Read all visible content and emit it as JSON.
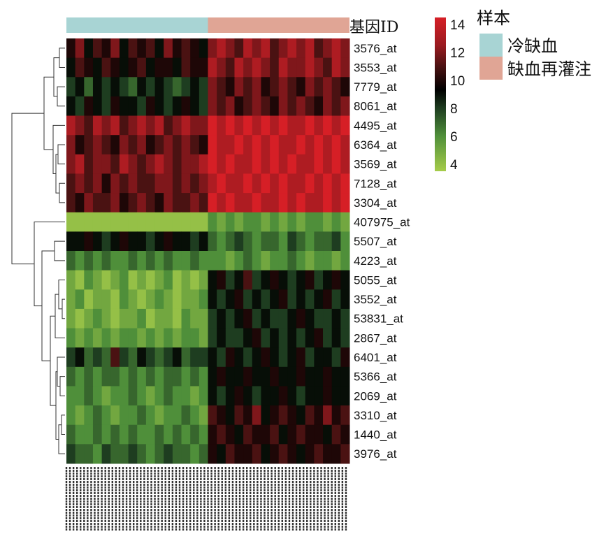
{
  "chart_data": {
    "type": "heatmap",
    "title": "",
    "row_header": "基因ID",
    "rows": [
      "3576_at",
      "3553_at",
      "7779_at",
      "8061_at",
      "4495_at",
      "6364_at",
      "3569_at",
      "7128_at",
      "3304_at",
      "407975_at",
      "5507_at",
      "4223_at",
      "5055_at",
      "3552_at",
      "53831_at",
      "2867_at",
      "6401_at",
      "5366_at",
      "2069_at",
      "3310_at",
      "1440_at",
      "3976_at"
    ],
    "column_groups": [
      {
        "name": "冷缺血",
        "color": "#a8d4d4",
        "count": 16
      },
      {
        "name": "缺血再灌注",
        "color": "#e0a595",
        "count": 16
      }
    ],
    "annotation_title": "样本",
    "colorbar": {
      "ticks": [
        4,
        6,
        8,
        10,
        12,
        14
      ],
      "range": [
        3.5,
        14.5
      ],
      "low_color": "#a6cc4a",
      "mid_color": "#000000",
      "high_color": "#d61f26"
    },
    "values": [
      [
        10,
        12,
        9,
        11,
        10,
        12,
        9,
        11,
        10,
        11,
        9,
        12,
        10,
        11,
        10,
        9,
        12,
        13,
        12,
        11,
        13,
        12,
        13,
        11,
        12,
        13,
        12,
        13,
        11,
        12,
        13,
        12
      ],
      [
        9,
        11,
        10,
        9,
        11,
        10,
        9,
        10,
        11,
        9,
        10,
        10,
        9,
        11,
        10,
        10,
        13,
        12,
        11,
        13,
        12,
        13,
        12,
        11,
        13,
        12,
        12,
        13,
        12,
        11,
        13,
        12
      ],
      [
        8,
        9,
        7,
        9,
        8,
        9,
        8,
        7,
        9,
        8,
        9,
        8,
        7,
        8,
        9,
        8,
        12,
        11,
        10,
        12,
        11,
        12,
        10,
        11,
        12,
        11,
        10,
        12,
        11,
        12,
        11,
        10
      ],
      [
        9,
        8,
        10,
        9,
        8,
        10,
        9,
        9,
        8,
        10,
        9,
        8,
        9,
        10,
        9,
        8,
        12,
        11,
        12,
        10,
        11,
        12,
        11,
        10,
        12,
        11,
        12,
        11,
        10,
        12,
        11,
        12
      ],
      [
        13,
        12,
        11,
        13,
        12,
        13,
        11,
        12,
        13,
        12,
        13,
        11,
        12,
        13,
        12,
        12,
        14,
        13,
        14,
        13,
        14,
        13,
        14,
        13,
        14,
        13,
        13,
        14,
        13,
        14,
        13,
        14
      ],
      [
        12,
        10,
        11,
        12,
        11,
        10,
        12,
        11,
        12,
        10,
        11,
        12,
        11,
        12,
        11,
        10,
        14,
        13,
        13,
        14,
        13,
        14,
        13,
        14,
        13,
        13,
        14,
        13,
        14,
        13,
        14,
        13
      ],
      [
        12,
        13,
        11,
        12,
        12,
        11,
        13,
        12,
        11,
        12,
        13,
        12,
        11,
        12,
        12,
        13,
        14,
        13,
        14,
        13,
        13,
        14,
        13,
        14,
        13,
        14,
        13,
        13,
        14,
        13,
        14,
        13
      ],
      [
        11,
        12,
        11,
        12,
        10,
        12,
        11,
        12,
        11,
        11,
        12,
        12,
        11,
        12,
        11,
        12,
        13,
        14,
        13,
        13,
        14,
        13,
        14,
        13,
        14,
        13,
        13,
        14,
        13,
        14,
        13,
        14
      ],
      [
        11,
        10,
        12,
        11,
        11,
        12,
        10,
        11,
        12,
        11,
        10,
        12,
        11,
        11,
        12,
        11,
        14,
        13,
        14,
        13,
        13,
        14,
        13,
        13,
        14,
        13,
        14,
        13,
        13,
        14,
        13,
        14
      ],
      [
        4,
        4,
        4,
        4,
        4,
        4,
        4,
        4,
        4,
        4,
        4,
        4,
        4,
        4,
        4,
        4,
        6,
        5,
        6,
        5,
        6,
        6,
        5,
        6,
        5,
        6,
        5,
        6,
        6,
        5,
        6,
        5
      ],
      [
        9,
        9,
        10,
        9,
        8,
        9,
        10,
        9,
        9,
        8,
        9,
        10,
        9,
        9,
        8,
        9,
        7,
        6,
        7,
        8,
        7,
        6,
        7,
        7,
        6,
        8,
        7,
        6,
        7,
        7,
        8,
        6
      ],
      [
        7,
        6,
        7,
        6,
        7,
        6,
        6,
        7,
        6,
        7,
        6,
        7,
        6,
        6,
        7,
        6,
        6,
        6,
        5,
        6,
        7,
        6,
        5,
        6,
        6,
        7,
        6,
        5,
        6,
        6,
        5,
        6
      ],
      [
        5,
        4,
        6,
        5,
        4,
        5,
        6,
        4,
        5,
        4,
        5,
        6,
        4,
        5,
        4,
        5,
        9,
        10,
        8,
        9,
        11,
        8,
        9,
        10,
        9,
        8,
        9,
        10,
        8,
        9,
        10,
        9
      ],
      [
        5,
        6,
        4,
        5,
        5,
        4,
        6,
        5,
        4,
        5,
        6,
        5,
        4,
        5,
        5,
        6,
        9,
        8,
        9,
        10,
        8,
        9,
        8,
        9,
        10,
        8,
        9,
        8,
        9,
        10,
        8,
        9
      ],
      [
        5,
        4,
        5,
        6,
        5,
        4,
        5,
        5,
        6,
        4,
        5,
        5,
        4,
        6,
        5,
        5,
        8,
        9,
        8,
        9,
        10,
        8,
        9,
        8,
        8,
        9,
        10,
        9,
        8,
        8,
        9,
        8
      ],
      [
        6,
        5,
        6,
        5,
        6,
        5,
        6,
        6,
        5,
        6,
        5,
        6,
        5,
        6,
        6,
        5,
        8,
        9,
        8,
        8,
        9,
        10,
        8,
        9,
        8,
        9,
        8,
        9,
        10,
        8,
        9,
        8
      ],
      [
        8,
        9,
        7,
        8,
        7,
        11,
        8,
        7,
        9,
        8,
        7,
        8,
        9,
        7,
        8,
        8,
        9,
        8,
        10,
        9,
        8,
        9,
        10,
        9,
        8,
        9,
        10,
        8,
        9,
        9,
        8,
        10
      ],
      [
        7,
        6,
        7,
        6,
        7,
        7,
        6,
        7,
        6,
        7,
        6,
        7,
        7,
        6,
        7,
        6,
        9,
        10,
        9,
        9,
        10,
        9,
        9,
        10,
        9,
        9,
        10,
        9,
        9,
        10,
        9,
        9
      ],
      [
        6,
        6,
        7,
        6,
        5,
        6,
        6,
        7,
        6,
        5,
        6,
        7,
        6,
        6,
        5,
        6,
        9,
        8,
        9,
        10,
        9,
        8,
        9,
        9,
        10,
        9,
        8,
        9,
        9,
        10,
        9,
        9
      ],
      [
        6,
        5,
        6,
        7,
        6,
        5,
        6,
        6,
        7,
        6,
        5,
        6,
        6,
        7,
        6,
        5,
        11,
        10,
        9,
        11,
        10,
        12,
        9,
        10,
        11,
        10,
        9,
        11,
        10,
        12,
        10,
        11
      ],
      [
        7,
        6,
        6,
        7,
        6,
        7,
        6,
        7,
        6,
        6,
        7,
        6,
        7,
        6,
        7,
        6,
        10,
        11,
        10,
        9,
        11,
        10,
        10,
        11,
        9,
        10,
        11,
        10,
        10,
        9,
        11,
        10
      ],
      [
        8,
        7,
        7,
        6,
        8,
        7,
        7,
        8,
        7,
        6,
        7,
        8,
        7,
        7,
        6,
        7,
        10,
        9,
        11,
        10,
        10,
        11,
        9,
        10,
        11,
        10,
        9,
        10,
        11,
        10,
        10,
        11
      ]
    ]
  }
}
